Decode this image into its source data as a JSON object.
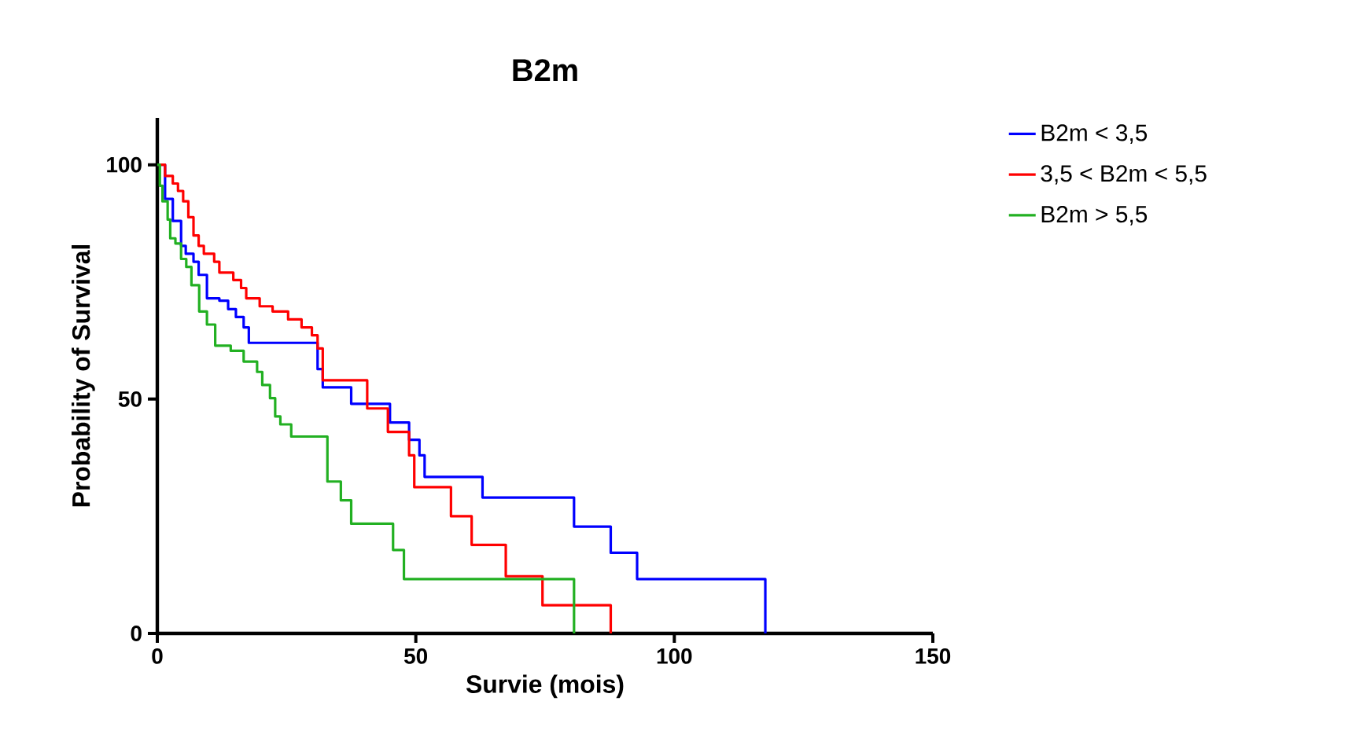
{
  "chart_data": {
    "type": "step",
    "title": "B2m",
    "xlabel": "Survie (mois)",
    "ylabel": "Probability of Survival",
    "xlim": [
      0,
      150
    ],
    "ylim": [
      0,
      110
    ],
    "xticks": [
      0,
      50,
      100,
      150
    ],
    "yticks": [
      0,
      50,
      100
    ],
    "legend": "top right",
    "marker": "none",
    "grid": false,
    "series": [
      {
        "name": "B2m < 3,5",
        "color": "#0000ff",
        "x": [
          0,
          1.5,
          3,
          4.6,
          5.5,
          7,
          8,
          9.6,
          12,
          13.7,
          15.2,
          16.7,
          17.7,
          31,
          32,
          37.5,
          45,
          48.7,
          50.7,
          51.7,
          62.9,
          80.6,
          87.7,
          92.8,
          117.6
        ],
        "values": [
          100,
          92.7,
          88,
          82.7,
          81,
          79.3,
          76.5,
          71.5,
          71,
          69.2,
          67.5,
          65.3,
          62,
          56.4,
          52.5,
          49,
          45,
          41.3,
          38,
          33.4,
          29,
          22.8,
          17.2,
          11.6,
          0
        ]
      },
      {
        "name": "3,5 < B2m < 5,5",
        "color": "#ff0000",
        "x": [
          0,
          1.5,
          3,
          4,
          5,
          6,
          7,
          8,
          9,
          11,
          12,
          14.7,
          16.2,
          17.2,
          19.8,
          22.3,
          25.3,
          27.9,
          29.9,
          31,
          32,
          40.6,
          44.6,
          48.7,
          49.7,
          56.8,
          60.8,
          67.4,
          74.5,
          87.7
        ],
        "values": [
          100,
          97.6,
          96,
          94.4,
          92.2,
          88.8,
          84.9,
          82.7,
          81,
          79.3,
          77,
          75.4,
          73.7,
          71.5,
          69.8,
          68.7,
          67,
          65.3,
          63.6,
          60.8,
          54,
          48,
          43,
          38,
          31.2,
          25,
          18.9,
          12.2,
          6,
          0
        ]
      },
      {
        "name": "B2m > 5,5",
        "color": "#22b022",
        "x": [
          0,
          0.5,
          1,
          2,
          2.5,
          3.5,
          4.6,
          5.6,
          6.6,
          8.1,
          9.6,
          11.2,
          14.2,
          16.7,
          19.3,
          20.3,
          21.8,
          22.8,
          23.8,
          25.9,
          32.9,
          35.5,
          37.5,
          45.6,
          47.7,
          80.6
        ],
        "values": [
          100,
          95.5,
          92.2,
          88.3,
          84.3,
          83.2,
          79.9,
          78.2,
          74.3,
          68.7,
          65.9,
          61.4,
          60.3,
          58,
          55.8,
          53,
          50.2,
          46.3,
          44.6,
          42,
          32.4,
          28.4,
          23.4,
          17.8,
          11.6,
          0
        ]
      }
    ]
  }
}
